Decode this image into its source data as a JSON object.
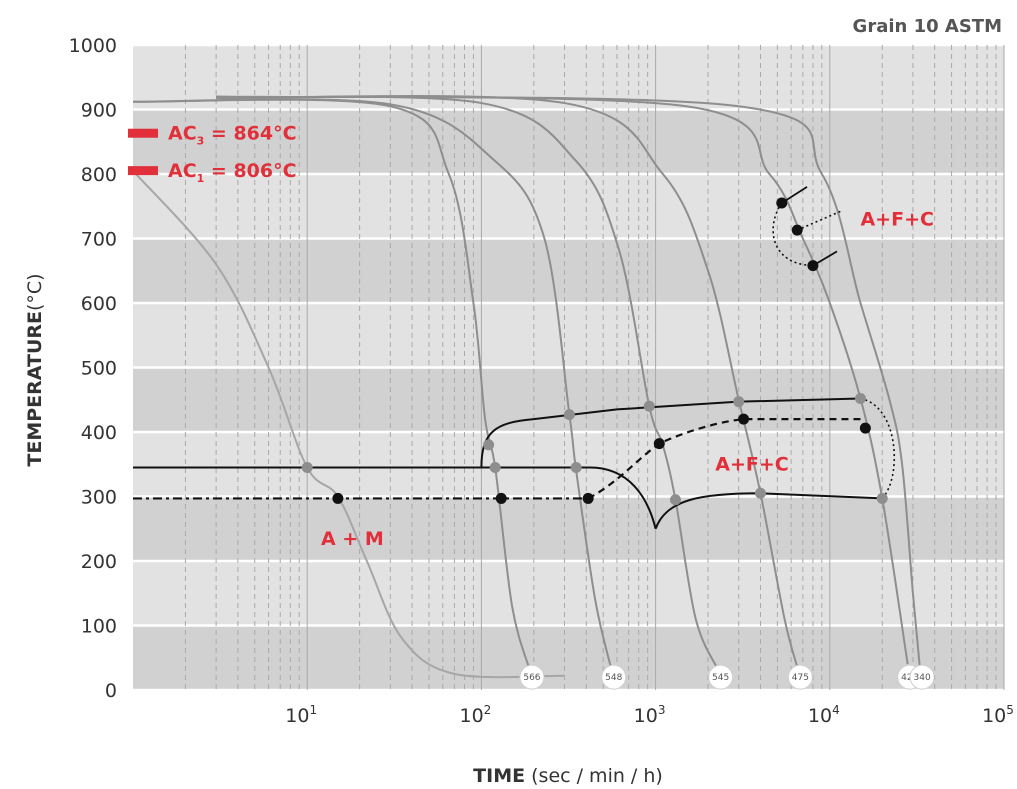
{
  "chart_data": {
    "type": "line",
    "title": "Grain 10 ASTM",
    "xlabel_bold": "TIME",
    "xlabel_rest": "(sec / min / h)",
    "ylabel_bold": "TEMPERATURE",
    "ylabel_rest": "(°C)",
    "xscale": "log",
    "xlim": [
      1,
      100000
    ],
    "ylim": [
      0,
      1000
    ],
    "grid": true,
    "y_ticks": [
      "0",
      "100",
      "200",
      "300",
      "400",
      "500",
      "600",
      "700",
      "800",
      "900",
      "1000"
    ],
    "x_ticks": [
      {
        "base": "10",
        "exp": "1",
        "value": 10
      },
      {
        "base": "10",
        "exp": "2",
        "value": 100
      },
      {
        "base": "10",
        "exp": "3",
        "value": 1000
      },
      {
        "base": "10",
        "exp": "4",
        "value": 10000
      },
      {
        "base": "10",
        "exp": "5",
        "value": 100000
      }
    ],
    "critical_temperatures": [
      {
        "label": "AC",
        "sub": "3",
        "rest": " = 864°C",
        "value": 864
      },
      {
        "label": "AC",
        "sub": "1",
        "rest": " = 806°C",
        "value": 806
      }
    ],
    "region_labels": [
      {
        "text": "A+F+C",
        "t": 15000,
        "temp": 720
      },
      {
        "text": "A+F+C",
        "t": 2200,
        "temp": 340
      },
      {
        "text": "A + M",
        "t": 12,
        "temp": 225
      }
    ],
    "cooling_curves": [
      {
        "hardness": "",
        "points": [
          [
            1,
            805
          ],
          [
            3,
            660
          ],
          [
            6,
            500
          ],
          [
            10,
            345
          ],
          [
            15,
            300
          ],
          [
            22,
            200
          ],
          [
            35,
            80
          ],
          [
            70,
            25
          ],
          [
            300,
            22
          ]
        ]
      },
      {
        "hardness": "566",
        "points": [
          [
            1,
            912
          ],
          [
            30,
            905
          ],
          [
            65,
            800
          ],
          [
            90,
            600
          ],
          [
            105,
            420
          ],
          [
            120,
            345
          ],
          [
            150,
            130
          ],
          [
            190,
            30
          ]
        ]
      },
      {
        "hardness": "548",
        "points": [
          [
            1,
            912
          ],
          [
            30,
            908
          ],
          [
            120,
            820
          ],
          [
            230,
            700
          ],
          [
            320,
            427
          ],
          [
            350,
            340
          ],
          [
            450,
            140
          ],
          [
            560,
            30
          ]
        ]
      },
      {
        "hardness": "545",
        "points": [
          [
            3,
            918
          ],
          [
            100,
            910
          ],
          [
            350,
            820
          ],
          [
            620,
            680
          ],
          [
            920,
            440
          ],
          [
            1100,
            380
          ],
          [
            1300,
            295
          ],
          [
            1700,
            110
          ],
          [
            2300,
            30
          ]
        ]
      },
      {
        "hardness": "475",
        "points": [
          [
            3,
            918
          ],
          [
            300,
            910
          ],
          [
            1100,
            800
          ],
          [
            2000,
            650
          ],
          [
            3000,
            450
          ],
          [
            4000,
            305
          ],
          [
            5500,
            110
          ],
          [
            6600,
            30
          ]
        ]
      },
      {
        "hardness": "426",
        "points": [
          [
            3,
            920
          ],
          [
            1500,
            905
          ],
          [
            4500,
            800
          ],
          [
            7000,
            700
          ],
          [
            10000,
            600
          ],
          [
            15000,
            452
          ],
          [
            20000,
            297
          ],
          [
            28000,
            40
          ]
        ]
      },
      {
        "hardness": "340",
        "points": [
          [
            3,
            920
          ],
          [
            3000,
            905
          ],
          [
            9000,
            800
          ],
          [
            15000,
            600
          ],
          [
            22000,
            450
          ],
          [
            26000,
            350
          ],
          [
            30000,
            150
          ],
          [
            33000,
            30
          ]
        ]
      }
    ],
    "curve_points": [
      {
        "t": 10,
        "temp": 345
      },
      {
        "t": 110,
        "temp": 380
      },
      {
        "t": 120,
        "temp": 345
      },
      {
        "t": 320,
        "temp": 427
      },
      {
        "t": 350,
        "temp": 345
      },
      {
        "t": 920,
        "temp": 440
      },
      {
        "t": 1300,
        "temp": 295
      },
      {
        "t": 3000,
        "temp": 447
      },
      {
        "t": 4000,
        "temp": 305
      },
      {
        "t": 15000,
        "temp": 452
      },
      {
        "t": 20000,
        "temp": 297
      }
    ],
    "transformation_points": [
      {
        "t": 15,
        "temp": 297
      },
      {
        "t": 130,
        "temp": 297
      },
      {
        "t": 410,
        "temp": 297
      },
      {
        "t": 1050,
        "temp": 382
      },
      {
        "t": 3200,
        "temp": 420
      },
      {
        "t": 16000,
        "temp": 406
      },
      {
        "t": 5300,
        "temp": 755
      },
      {
        "t": 6500,
        "temp": 713
      },
      {
        "t": 8000,
        "temp": 658
      }
    ],
    "ms_line": {
      "temp": 345
    },
    "mf_line": {
      "temp": 297
    }
  }
}
